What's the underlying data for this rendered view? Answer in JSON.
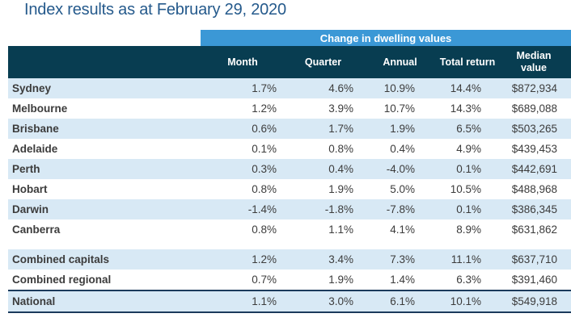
{
  "title": "Index results as at February 29, 2020",
  "table": {
    "banner": "Change in dwelling values",
    "columns": [
      "Month",
      "Quarter",
      "Annual",
      "Total return",
      "Median value"
    ],
    "rows": [
      {
        "label": "Sydney",
        "section": "capitals",
        "month": "1.7%",
        "quarter": "4.6%",
        "annual": "10.9%",
        "total_return": "14.4%",
        "median_value": "$872,934"
      },
      {
        "label": "Melbourne",
        "section": "capitals",
        "month": "1.2%",
        "quarter": "3.9%",
        "annual": "10.7%",
        "total_return": "14.3%",
        "median_value": "$689,088"
      },
      {
        "label": "Brisbane",
        "section": "capitals",
        "month": "0.6%",
        "quarter": "1.7%",
        "annual": "1.9%",
        "total_return": "6.5%",
        "median_value": "$503,265"
      },
      {
        "label": "Adelaide",
        "section": "capitals",
        "month": "0.1%",
        "quarter": "0.8%",
        "annual": "0.4%",
        "total_return": "4.9%",
        "median_value": "$439,453"
      },
      {
        "label": "Perth",
        "section": "capitals",
        "month": "0.3%",
        "quarter": "0.4%",
        "annual": "-4.0%",
        "total_return": "0.1%",
        "median_value": "$442,691"
      },
      {
        "label": "Hobart",
        "section": "capitals",
        "month": "0.8%",
        "quarter": "1.9%",
        "annual": "5.0%",
        "total_return": "10.5%",
        "median_value": "$488,968"
      },
      {
        "label": "Darwin",
        "section": "capitals",
        "month": "-1.4%",
        "quarter": "-1.8%",
        "annual": "-7.8%",
        "total_return": "0.1%",
        "median_value": "$386,345"
      },
      {
        "label": "Canberra",
        "section": "capitals",
        "month": "0.8%",
        "quarter": "1.1%",
        "annual": "4.1%",
        "total_return": "8.9%",
        "median_value": "$631,862"
      },
      {
        "label": "Combined capitals",
        "section": "combined",
        "month": "1.2%",
        "quarter": "3.4%",
        "annual": "7.3%",
        "total_return": "11.1%",
        "median_value": "$637,710"
      },
      {
        "label": "Combined regional",
        "section": "combined",
        "month": "0.7%",
        "quarter": "1.9%",
        "annual": "1.4%",
        "total_return": "6.3%",
        "median_value": "$391,460"
      },
      {
        "label": "National",
        "section": "national",
        "month": "1.1%",
        "quarter": "3.0%",
        "annual": "6.1%",
        "total_return": "10.1%",
        "median_value": "$549,918"
      }
    ]
  },
  "colors": {
    "title_text": "#255A8C",
    "banner_bg": "#3B98D6",
    "header_bg": "#083D51",
    "header_text": "#FFFFFF",
    "row_stripe_bg": "#D8E9F5",
    "national_border": "#1B3A5C",
    "body_text": "#3C3C3C"
  }
}
